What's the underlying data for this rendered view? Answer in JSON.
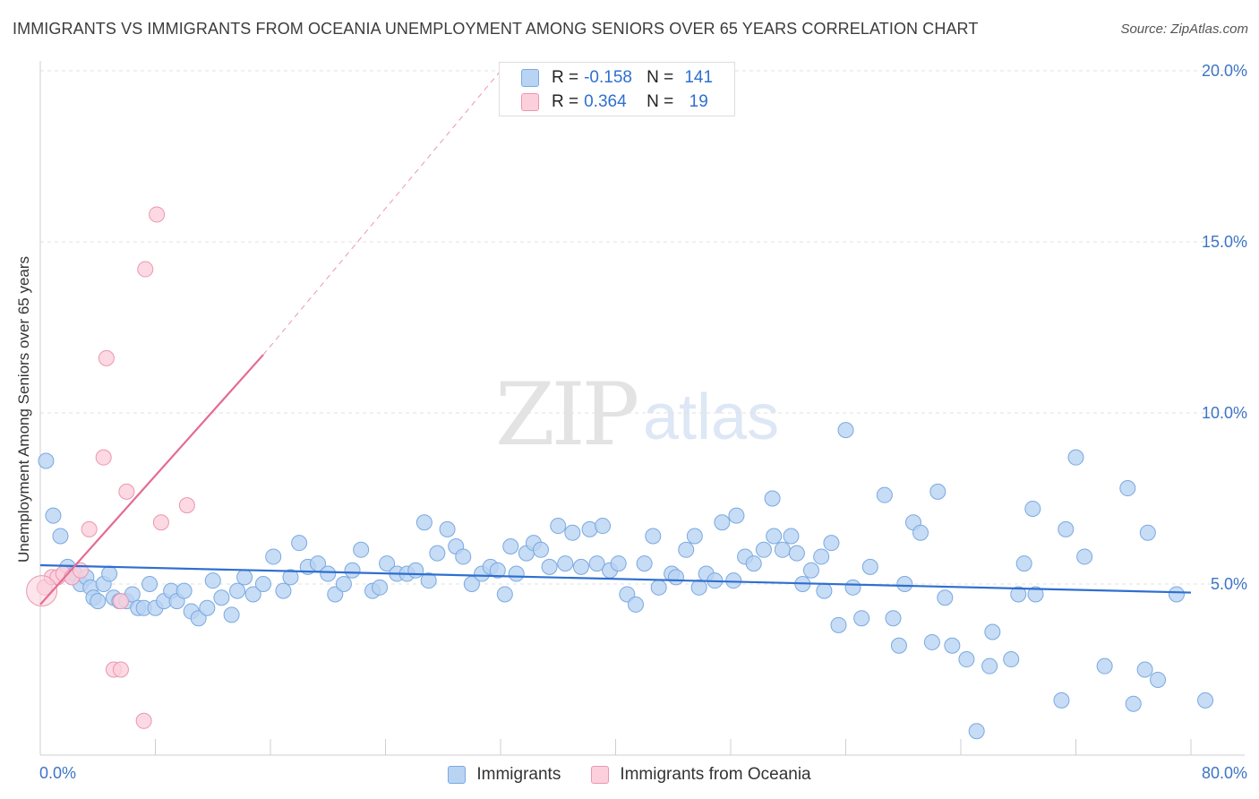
{
  "title": "IMMIGRANTS VS IMMIGRANTS FROM OCEANIA UNEMPLOYMENT AMONG SENIORS OVER 65 YEARS CORRELATION CHART",
  "source": "Source: ZipAtlas.com",
  "watermark": {
    "zip": "ZIP",
    "atlas": "atlas"
  },
  "colors": {
    "immigrants_fill": "#b9d3f3",
    "immigrants_stroke": "#7aa9e0",
    "immigrants_line": "#2f6fcf",
    "oceania_fill": "#fbd0dc",
    "oceania_stroke": "#ec96b0",
    "oceania_line": "#e46c93",
    "grid": "#e2e2e2",
    "axis_text": "#3d74c6"
  },
  "legend": {
    "rows": [
      {
        "r_label": "R =",
        "r_value": "-0.158",
        "n_label": "N =",
        "n_value": "141"
      },
      {
        "r_label": "R =",
        "r_value": "0.364",
        "n_label": "N =",
        "n_value": "19"
      }
    ]
  },
  "bottom_legend": {
    "immigrants": "Immigrants",
    "oceania": "Immigrants from Oceania"
  },
  "chart_data": {
    "type": "scatter",
    "title": "IMMIGRANTS VS IMMIGRANTS FROM OCEANIA UNEMPLOYMENT AMONG SENIORS OVER 65 YEARS CORRELATION CHART",
    "xlabel": "",
    "ylabel": "Unemployment Among Seniors over 65 years",
    "xlim": [
      0,
      80
    ],
    "ylim": [
      0,
      20
    ],
    "x_tick_labels": [
      "0.0%",
      "80.0%"
    ],
    "y_ticks": [
      5,
      10,
      15,
      20
    ],
    "y_tick_labels": [
      "5.0%",
      "10.0%",
      "15.0%",
      "20.0%"
    ],
    "grid": true,
    "series": [
      {
        "name": "Immigrants",
        "r": -0.158,
        "n": 141,
        "trend": {
          "x": [
            0,
            80
          ],
          "y": [
            5.55,
            4.75
          ]
        },
        "points": [
          [
            0.4,
            8.6
          ],
          [
            0.9,
            7.0
          ],
          [
            1.4,
            6.4
          ],
          [
            1.9,
            5.5
          ],
          [
            2.2,
            5.2
          ],
          [
            2.4,
            5.3
          ],
          [
            2.8,
            5.0
          ],
          [
            3.2,
            5.2
          ],
          [
            3.5,
            4.9
          ],
          [
            3.7,
            4.6
          ],
          [
            4.0,
            4.5
          ],
          [
            4.4,
            5.0
          ],
          [
            4.8,
            5.3
          ],
          [
            5.1,
            4.6
          ],
          [
            5.5,
            4.5
          ],
          [
            6.0,
            4.5
          ],
          [
            6.4,
            4.7
          ],
          [
            6.8,
            4.3
          ],
          [
            7.2,
            4.3
          ],
          [
            7.6,
            5.0
          ],
          [
            8.0,
            4.3
          ],
          [
            8.6,
            4.5
          ],
          [
            9.1,
            4.8
          ],
          [
            9.5,
            4.5
          ],
          [
            10.0,
            4.8
          ],
          [
            10.5,
            4.2
          ],
          [
            11.0,
            4.0
          ],
          [
            11.6,
            4.3
          ],
          [
            12.0,
            5.1
          ],
          [
            12.6,
            4.6
          ],
          [
            13.3,
            4.1
          ],
          [
            13.7,
            4.8
          ],
          [
            14.2,
            5.2
          ],
          [
            14.8,
            4.7
          ],
          [
            15.5,
            5.0
          ],
          [
            16.2,
            5.8
          ],
          [
            16.9,
            4.8
          ],
          [
            17.4,
            5.2
          ],
          [
            18.0,
            6.2
          ],
          [
            18.6,
            5.5
          ],
          [
            19.3,
            5.6
          ],
          [
            20.0,
            5.3
          ],
          [
            20.5,
            4.7
          ],
          [
            21.1,
            5.0
          ],
          [
            21.7,
            5.4
          ],
          [
            22.3,
            6.0
          ],
          [
            23.1,
            4.8
          ],
          [
            23.6,
            4.9
          ],
          [
            24.1,
            5.6
          ],
          [
            24.8,
            5.3
          ],
          [
            25.5,
            5.3
          ],
          [
            26.1,
            5.4
          ],
          [
            26.7,
            6.8
          ],
          [
            27.0,
            5.1
          ],
          [
            27.6,
            5.9
          ],
          [
            28.3,
            6.6
          ],
          [
            28.9,
            6.1
          ],
          [
            29.4,
            5.8
          ],
          [
            30.0,
            5.0
          ],
          [
            30.7,
            5.3
          ],
          [
            31.3,
            5.5
          ],
          [
            31.8,
            5.4
          ],
          [
            32.3,
            4.7
          ],
          [
            32.7,
            6.1
          ],
          [
            33.1,
            5.3
          ],
          [
            33.8,
            5.9
          ],
          [
            34.3,
            6.2
          ],
          [
            34.8,
            6.0
          ],
          [
            35.4,
            5.5
          ],
          [
            36.0,
            6.7
          ],
          [
            36.5,
            5.6
          ],
          [
            37.0,
            6.5
          ],
          [
            37.6,
            5.5
          ],
          [
            38.2,
            6.6
          ],
          [
            38.7,
            5.6
          ],
          [
            39.1,
            6.7
          ],
          [
            39.6,
            5.4
          ],
          [
            40.2,
            5.6
          ],
          [
            40.8,
            4.7
          ],
          [
            41.4,
            4.4
          ],
          [
            42.0,
            5.6
          ],
          [
            42.6,
            6.4
          ],
          [
            43.0,
            4.9
          ],
          [
            43.9,
            5.3
          ],
          [
            44.2,
            5.2
          ],
          [
            44.9,
            6.0
          ],
          [
            45.5,
            6.4
          ],
          [
            45.8,
            4.9
          ],
          [
            46.3,
            5.3
          ],
          [
            46.9,
            5.1
          ],
          [
            47.4,
            6.8
          ],
          [
            48.2,
            5.1
          ],
          [
            48.4,
            7.0
          ],
          [
            49.0,
            5.8
          ],
          [
            49.6,
            5.6
          ],
          [
            50.3,
            6.0
          ],
          [
            50.9,
            7.5
          ],
          [
            51.0,
            6.4
          ],
          [
            51.6,
            6.0
          ],
          [
            52.2,
            6.4
          ],
          [
            52.6,
            5.9
          ],
          [
            53.0,
            5.0
          ],
          [
            53.6,
            5.4
          ],
          [
            54.3,
            5.8
          ],
          [
            54.5,
            4.8
          ],
          [
            55.0,
            6.2
          ],
          [
            55.5,
            3.8
          ],
          [
            56.0,
            9.5
          ],
          [
            56.5,
            4.9
          ],
          [
            57.1,
            4.0
          ],
          [
            57.7,
            5.5
          ],
          [
            58.7,
            7.6
          ],
          [
            59.3,
            4.0
          ],
          [
            59.7,
            3.2
          ],
          [
            60.1,
            5.0
          ],
          [
            60.7,
            6.8
          ],
          [
            61.2,
            6.5
          ],
          [
            62.0,
            3.3
          ],
          [
            62.4,
            7.7
          ],
          [
            62.9,
            4.6
          ],
          [
            63.4,
            3.2
          ],
          [
            64.4,
            2.8
          ],
          [
            65.1,
            0.7
          ],
          [
            66.0,
            2.6
          ],
          [
            66.2,
            3.6
          ],
          [
            67.5,
            2.8
          ],
          [
            68.0,
            4.7
          ],
          [
            68.4,
            5.6
          ],
          [
            69.0,
            7.2
          ],
          [
            69.2,
            4.7
          ],
          [
            71.0,
            1.6
          ],
          [
            71.3,
            6.6
          ],
          [
            72.0,
            8.7
          ],
          [
            72.6,
            5.8
          ],
          [
            74.0,
            2.6
          ],
          [
            75.6,
            7.8
          ],
          [
            76.0,
            1.5
          ],
          [
            76.8,
            2.5
          ],
          [
            77.0,
            6.5
          ],
          [
            77.7,
            2.2
          ],
          [
            79.0,
            4.7
          ],
          [
            81.0,
            1.6
          ]
        ]
      },
      {
        "name": "Immigrants from Oceania",
        "r": 0.364,
        "n": 19,
        "trend": {
          "x": [
            0,
            15.5
          ],
          "y": [
            4.4,
            11.7
          ]
        },
        "trend_dashed_to": {
          "x": [
            15.5,
            32
          ],
          "y": [
            11.7,
            20.0
          ]
        },
        "points": [
          [
            0.3,
            4.9
          ],
          [
            0.8,
            5.2
          ],
          [
            1.2,
            5.2
          ],
          [
            1.6,
            5.3
          ],
          [
            2.2,
            5.2
          ],
          [
            2.8,
            5.4
          ],
          [
            3.4,
            6.6
          ],
          [
            4.4,
            8.7
          ],
          [
            4.6,
            11.6
          ],
          [
            5.1,
            2.5
          ],
          [
            5.6,
            2.5
          ],
          [
            5.6,
            4.5
          ],
          [
            6.0,
            7.7
          ],
          [
            7.2,
            1.0
          ],
          [
            7.3,
            14.2
          ],
          [
            8.1,
            15.8
          ],
          [
            8.4,
            6.8
          ],
          [
            10.2,
            7.3
          ],
          [
            0.1,
            4.8
          ]
        ]
      }
    ]
  }
}
